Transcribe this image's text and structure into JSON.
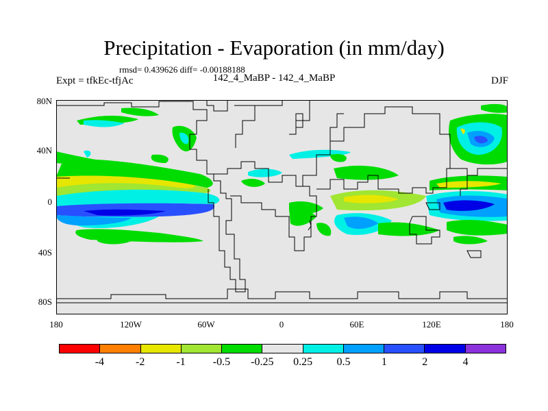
{
  "title": "Precipitation - Evaporation (in mm/day)",
  "stats": "rmsd= 0.439626 diff= -0.00188188",
  "expt": "Expt = tfkEc-tfjAc",
  "experiment": "142_4_MaBP - 142_4_MaBP",
  "season": "DJF",
  "lat_labels": [
    "80N",
    "40N",
    "0",
    "40S",
    "80S"
  ],
  "lon_labels": [
    "180",
    "120W",
    "60W",
    "0",
    "60E",
    "120E",
    "180"
  ],
  "colorbar": {
    "colors": [
      "#ff0000",
      "#ff8000",
      "#e6e600",
      "#a0e632",
      "#00dc00",
      "#e6e6e6",
      "#00f0e6",
      "#00a0ff",
      "#2850ff",
      "#0000e6",
      "#8c32dc"
    ],
    "labels": [
      "-4",
      "-2",
      "-1",
      "-0.5",
      "-0.25",
      "0.25",
      "0.5",
      "1",
      "2",
      "4"
    ]
  },
  "colors": {
    "neutral": "#e6e6e6",
    "yellow": "#e6e600",
    "lightgreen": "#a0e632",
    "green": "#00dc00",
    "cyan": "#00f0e6",
    "lightblue": "#00a0ff",
    "blue": "#2850ff",
    "darkblue": "#0000e6"
  }
}
